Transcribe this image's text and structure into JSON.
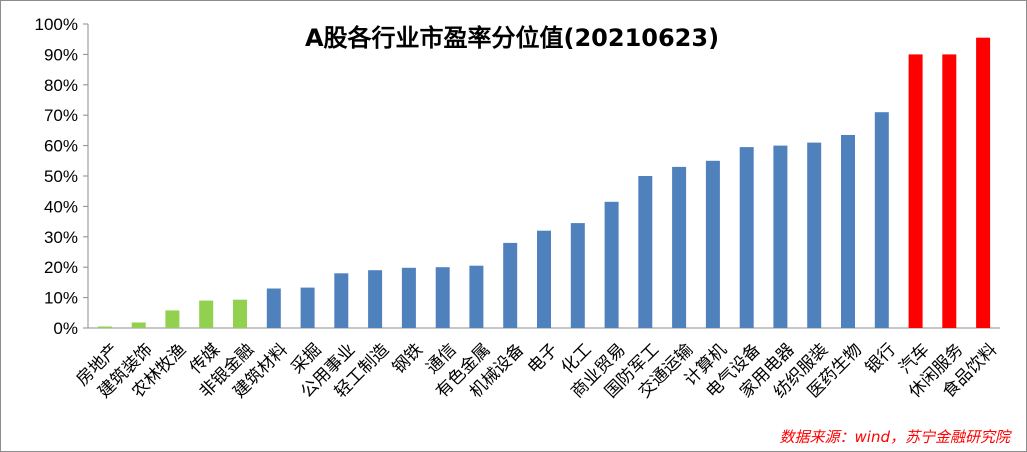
{
  "chart_data": {
    "type": "bar",
    "title": "A股各行业市盈率分位值(20210623)",
    "xlabel": "",
    "ylabel": "",
    "ylim": [
      0,
      100
    ],
    "yticks": [
      "0%",
      "10%",
      "20%",
      "30%",
      "40%",
      "50%",
      "60%",
      "70%",
      "80%",
      "90%",
      "100%"
    ],
    "grid": false,
    "legend": "none",
    "categories": [
      "房地产",
      "建筑装饰",
      "农林牧渔",
      "传媒",
      "非银金融",
      "建筑材料",
      "采掘",
      "公用事业",
      "轻工制造",
      "钢铁",
      "通信",
      "有色金属",
      "机械设备",
      "电子",
      "化工",
      "商业贸易",
      "国防军工",
      "交通运输",
      "计算机",
      "电气设备",
      "家用电器",
      "纺织服装",
      "医药生物",
      "银行",
      "汽车",
      "休闲服务",
      "食品饮料"
    ],
    "values": [
      0.5,
      1.8,
      5.8,
      9.0,
      9.3,
      13.0,
      13.3,
      18.0,
      19.0,
      19.8,
      20.0,
      20.5,
      28.0,
      32.0,
      34.5,
      41.5,
      50.0,
      53.0,
      55.0,
      59.5,
      60.0,
      61.0,
      63.5,
      71.0,
      90.0,
      90.0,
      95.5
    ],
    "bar_colors": [
      "#92d050",
      "#92d050",
      "#92d050",
      "#92d050",
      "#92d050",
      "#4f81bd",
      "#4f81bd",
      "#4f81bd",
      "#4f81bd",
      "#4f81bd",
      "#4f81bd",
      "#4f81bd",
      "#4f81bd",
      "#4f81bd",
      "#4f81bd",
      "#4f81bd",
      "#4f81bd",
      "#4f81bd",
      "#4f81bd",
      "#4f81bd",
      "#4f81bd",
      "#4f81bd",
      "#4f81bd",
      "#4f81bd",
      "#ff0000",
      "#ff0000",
      "#ff0000"
    ],
    "source_note": "数据来源：wind，苏宁金融研究院"
  }
}
